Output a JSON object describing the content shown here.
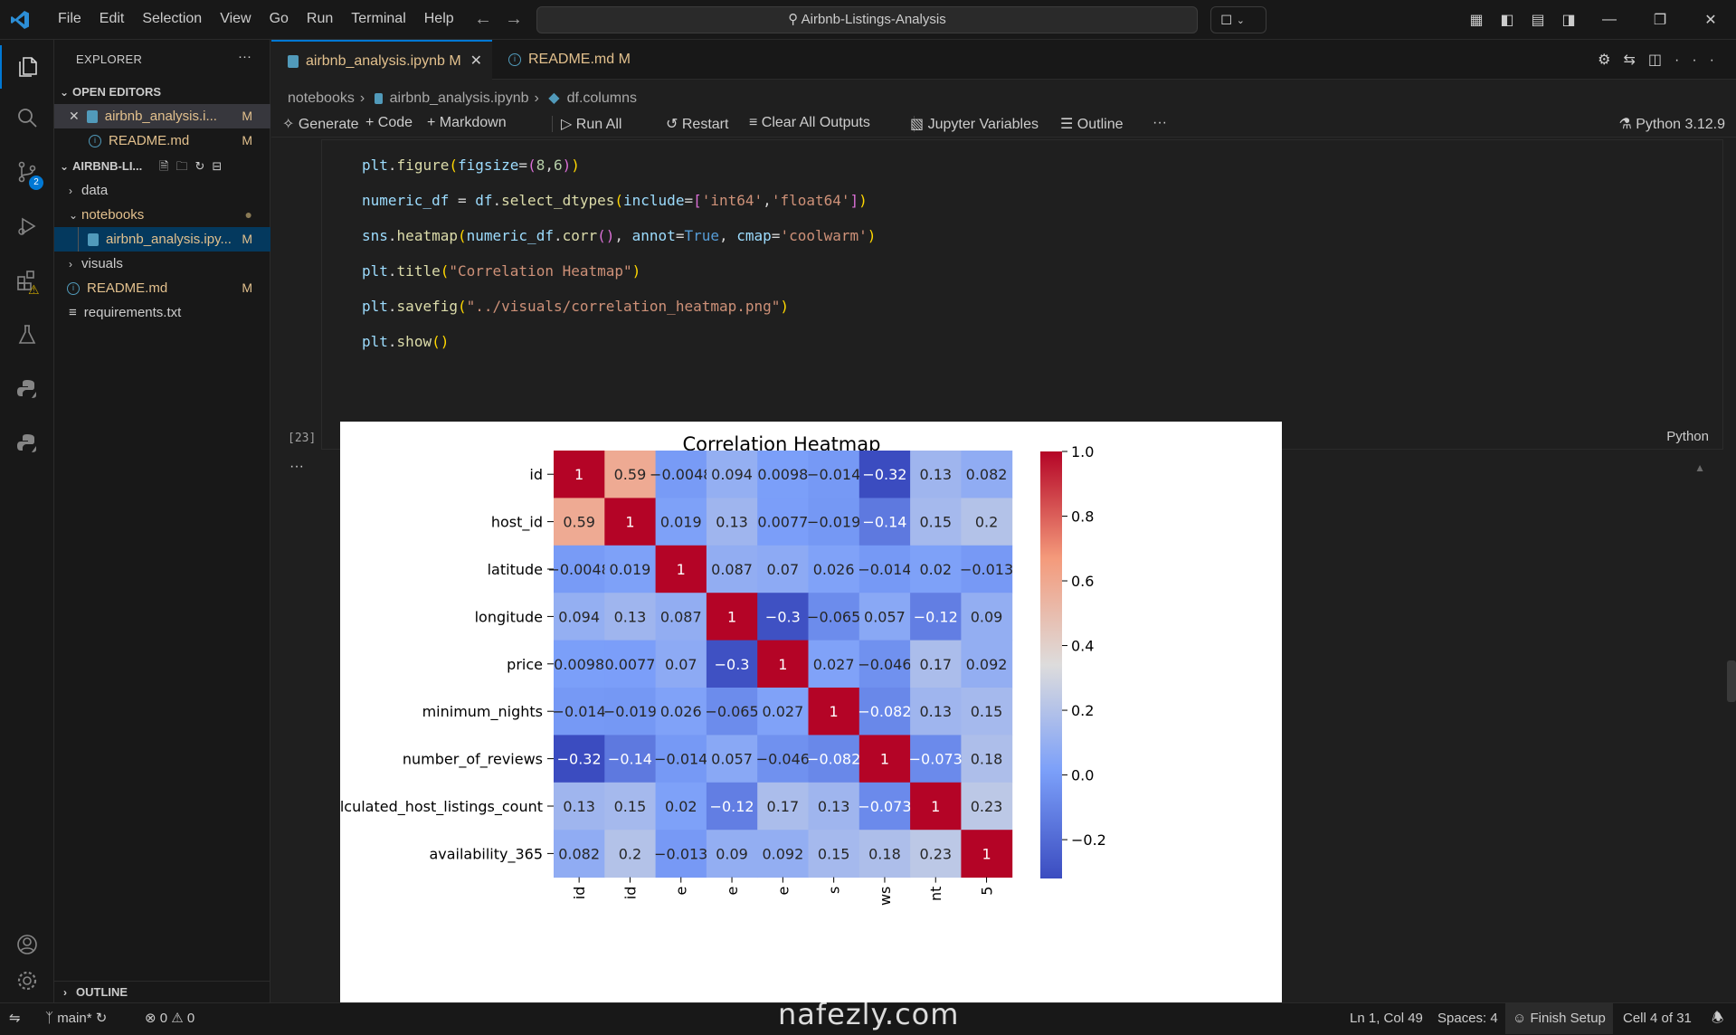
{
  "menu": [
    "File",
    "Edit",
    "Selection",
    "View",
    "Go",
    "Run",
    "Terminal",
    "Help"
  ],
  "search": {
    "text": "Airbnb-Listings-Analysis"
  },
  "explorer": {
    "title": "EXPLORER",
    "open_editors_label": "OPEN EDITORS",
    "open_editors": [
      {
        "name": "airbnb_analysis.i...",
        "status": "M"
      },
      {
        "name": "README.md",
        "status": "M"
      }
    ],
    "project_label": "AIRBNB-LI...",
    "tree": [
      {
        "name": "data",
        "type": "folder"
      },
      {
        "name": "notebooks",
        "type": "folder-open"
      },
      {
        "name": "airbnb_analysis.ipy...",
        "status": "M"
      },
      {
        "name": "visuals",
        "type": "folder"
      },
      {
        "name": "README.md",
        "status": "M"
      },
      {
        "name": "requirements.txt"
      }
    ],
    "outline_label": "OUTLINE"
  },
  "tabs": [
    {
      "label": "airbnb_analysis.ipynb",
      "status": "M"
    },
    {
      "label": "README.md",
      "status": "M"
    }
  ],
  "breadcrumb": [
    "notebooks",
    "airbnb_analysis.ipynb",
    "df.columns"
  ],
  "toolbar": {
    "generate": "Generate",
    "code": "Code",
    "markdown": "Markdown",
    "run_all": "Run All",
    "restart": "Restart",
    "clear_outputs": "Clear All Outputs",
    "variables": "Jupyter Variables",
    "outline": "Outline",
    "more": "···",
    "kernel": "Python 3.12.9"
  },
  "cell": {
    "exec_count": "[23]",
    "language": "Python",
    "output_more": "···",
    "lines": [
      "plt.figure(figsize=(8,6))",
      "numeric_df = df.select_dtypes(include=['int64','float64'])",
      "sns.heatmap(numeric_df.corr(), annot=True, cmap='coolwarm')",
      "plt.title(\"Correlation Heatmap\")",
      "plt.savefig(\"../visuals/correlation_heatmap.png\")",
      "plt.show()"
    ]
  },
  "statusbar": {
    "branch": "main*",
    "errors": "0",
    "warnings": "0",
    "position": "Ln 1, Col 49",
    "spaces": "Spaces: 4",
    "finish_setup": "Finish Setup",
    "cell_info": "Cell 4 of 31"
  },
  "watermark": "nafezly.com",
  "chart_data": {
    "type": "heatmap",
    "title": "Correlation Heatmap",
    "colormap": "coolwarm",
    "rows": [
      "id",
      "host_id",
      "latitude",
      "longitude",
      "price",
      "minimum_nights",
      "number_of_reviews",
      "calculated_host_listings_count",
      "availability_365"
    ],
    "columns_visible_ticks": [
      "id",
      "id",
      "e",
      "e",
      "e",
      "s",
      "ws",
      "nt",
      "5"
    ],
    "values": [
      [
        1,
        0.59,
        -0.0048,
        0.094,
        0.0098,
        -0.014,
        -0.32,
        0.13,
        0.082
      ],
      [
        0.59,
        1,
        0.019,
        0.13,
        0.0077,
        -0.019,
        -0.14,
        0.15,
        0.2
      ],
      [
        -0.0048,
        0.019,
        1,
        0.087,
        0.07,
        0.026,
        -0.014,
        0.02,
        -0.013
      ],
      [
        0.094,
        0.13,
        0.087,
        1,
        -0.3,
        -0.065,
        0.057,
        -0.12,
        0.09
      ],
      [
        0.0098,
        0.0077,
        0.07,
        -0.3,
        1,
        0.027,
        -0.046,
        0.17,
        0.092
      ],
      [
        -0.014,
        -0.019,
        0.026,
        -0.065,
        0.027,
        1,
        -0.082,
        0.13,
        0.15
      ],
      [
        -0.32,
        -0.14,
        -0.014,
        0.057,
        -0.046,
        -0.082,
        1,
        -0.073,
        0.18
      ],
      [
        0.13,
        0.15,
        0.02,
        -0.12,
        0.17,
        0.13,
        -0.073,
        1,
        0.23
      ],
      [
        0.082,
        0.2,
        -0.013,
        0.09,
        0.092,
        0.15,
        0.18,
        0.23,
        1
      ]
    ],
    "colorbar_ticks": [
      "1.0",
      "0.8",
      "0.6",
      "0.4",
      "0.2",
      "0.0",
      "−0.2"
    ],
    "colorbar_range": [
      -0.32,
      1.0
    ]
  }
}
